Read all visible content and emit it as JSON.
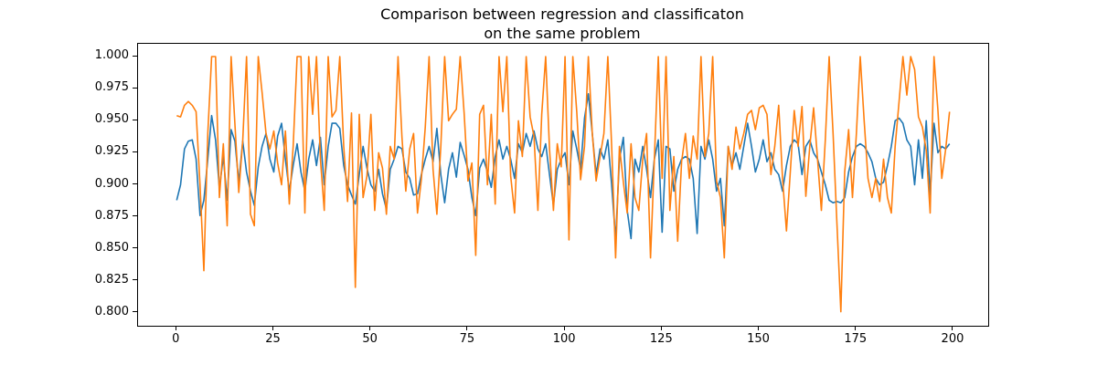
{
  "figure": {
    "title_line1": "Comparison between regression and classificaton",
    "title_line2": "on the same problem",
    "background": "#ffffff"
  },
  "chart_data": {
    "type": "line",
    "title": "Comparison between regression and classificaton\non the same problem",
    "xlabel": "",
    "ylabel": "",
    "grid": false,
    "legend": "none",
    "xlim": [
      -9.95,
      208.95
    ],
    "ylim": [
      0.79,
      1.01
    ],
    "xticks": [
      0,
      25,
      50,
      75,
      100,
      125,
      150,
      175,
      200
    ],
    "xtick_labels": [
      "0",
      "25",
      "50",
      "75",
      "100",
      "125",
      "150",
      "175",
      "200"
    ],
    "yticks": [
      0.8,
      0.825,
      0.85,
      0.875,
      0.9,
      0.925,
      0.95,
      0.975,
      1.0
    ],
    "ytick_labels": [
      "0.800",
      "0.825",
      "0.850",
      "0.875",
      "0.900",
      "0.925",
      "0.950",
      "0.975",
      "1.000"
    ],
    "x_start": 0,
    "x_step": 1,
    "series": [
      {
        "name": "series-1-blue",
        "color": "#1f77b4",
        "values": [
          0.888,
          0.9,
          0.928,
          0.934,
          0.935,
          0.92,
          0.876,
          0.888,
          0.92,
          0.954,
          0.935,
          0.897,
          0.922,
          0.888,
          0.943,
          0.934,
          0.902,
          0.934,
          0.91,
          0.895,
          0.884,
          0.914,
          0.93,
          0.94,
          0.92,
          0.91,
          0.938,
          0.948,
          0.92,
          0.895,
          0.915,
          0.932,
          0.91,
          0.895,
          0.92,
          0.935,
          0.915,
          0.937,
          0.9,
          0.93,
          0.948,
          0.948,
          0.944,
          0.915,
          0.9,
          0.892,
          0.885,
          0.908,
          0.93,
          0.913,
          0.9,
          0.895,
          0.912,
          0.893,
          0.881,
          0.912,
          0.92,
          0.93,
          0.928,
          0.91,
          0.905,
          0.892,
          0.893,
          0.908,
          0.92,
          0.93,
          0.918,
          0.944,
          0.908,
          0.886,
          0.912,
          0.925,
          0.906,
          0.933,
          0.923,
          0.912,
          0.89,
          0.876,
          0.913,
          0.92,
          0.91,
          0.898,
          0.922,
          0.935,
          0.92,
          0.93,
          0.92,
          0.905,
          0.932,
          0.925,
          0.94,
          0.93,
          0.942,
          0.928,
          0.922,
          0.932,
          0.908,
          0.884,
          0.912,
          0.92,
          0.925,
          0.9,
          0.942,
          0.928,
          0.912,
          0.952,
          0.971,
          0.94,
          0.908,
          0.928,
          0.92,
          0.935,
          0.9,
          0.857,
          0.92,
          0.937,
          0.88,
          0.858,
          0.92,
          0.91,
          0.93,
          0.912,
          0.89,
          0.92,
          0.935,
          0.863,
          0.93,
          0.928,
          0.895,
          0.912,
          0.92,
          0.922,
          0.92,
          0.905,
          0.862,
          0.93,
          0.92,
          0.935,
          0.92,
          0.895,
          0.905,
          0.868,
          0.93,
          0.915,
          0.925,
          0.912,
          0.93,
          0.948,
          0.93,
          0.91,
          0.92,
          0.935,
          0.918,
          0.925,
          0.912,
          0.908,
          0.895,
          0.915,
          0.93,
          0.935,
          0.932,
          0.908,
          0.93,
          0.935,
          0.925,
          0.92,
          0.91,
          0.9,
          0.888,
          0.886,
          0.887,
          0.886,
          0.89,
          0.91,
          0.922,
          0.93,
          0.932,
          0.93,
          0.925,
          0.918,
          0.905,
          0.9,
          0.902,
          0.915,
          0.93,
          0.95,
          0.952,
          0.948,
          0.935,
          0.93,
          0.9,
          0.935,
          0.905,
          0.95,
          0.892,
          0.948,
          0.925,
          0.93,
          0.928,
          0.932
        ]
      },
      {
        "name": "series-2-orange",
        "color": "#ff7f0e",
        "values": [
          0.954,
          0.953,
          0.962,
          0.965,
          0.962,
          0.957,
          0.9,
          0.833,
          0.94,
          1.0,
          1.0,
          0.89,
          0.932,
          0.868,
          1.0,
          0.947,
          0.894,
          0.934,
          1.0,
          0.877,
          0.868,
          1.0,
          0.972,
          0.94,
          0.928,
          0.942,
          0.917,
          0.9,
          0.942,
          0.885,
          0.93,
          1.0,
          1.0,
          0.878,
          1.0,
          0.955,
          1.0,
          0.92,
          0.88,
          1.0,
          0.953,
          0.958,
          1.0,
          0.93,
          0.887,
          0.956,
          0.82,
          0.955,
          0.89,
          0.907,
          0.955,
          0.88,
          0.925,
          0.913,
          0.877,
          0.93,
          0.92,
          1.0,
          0.937,
          0.895,
          0.928,
          0.94,
          0.878,
          0.904,
          0.945,
          1.0,
          0.912,
          0.877,
          0.93,
          1.0,
          0.95,
          0.955,
          0.959,
          1.0,
          0.956,
          0.903,
          0.917,
          0.845,
          0.955,
          0.962,
          0.9,
          0.955,
          0.885,
          1.0,
          0.957,
          1.0,
          0.907,
          0.878,
          0.95,
          0.922,
          1.0,
          0.953,
          0.938,
          0.88,
          0.955,
          1.0,
          0.928,
          0.88,
          0.932,
          0.914,
          1.0,
          0.857,
          1.0,
          0.957,
          0.904,
          0.93,
          1.0,
          0.94,
          0.903,
          0.922,
          0.94,
          1.0,
          0.93,
          0.843,
          0.93,
          0.902,
          0.878,
          0.932,
          0.89,
          0.88,
          0.92,
          0.94,
          0.843,
          0.92,
          1.0,
          0.905,
          1.0,
          0.88,
          0.922,
          0.856,
          0.918,
          0.94,
          0.905,
          0.938,
          0.92,
          1.0,
          0.922,
          0.94,
          1.0,
          0.903,
          0.89,
          0.843,
          0.93,
          0.912,
          0.945,
          0.928,
          0.94,
          0.955,
          0.958,
          0.943,
          0.96,
          0.962,
          0.955,
          0.908,
          0.93,
          0.962,
          0.905,
          0.864,
          0.91,
          0.958,
          0.93,
          0.961,
          0.891,
          0.93,
          0.96,
          0.92,
          0.88,
          0.935,
          1.0,
          0.94,
          0.87,
          0.801,
          0.91,
          0.943,
          0.89,
          0.94,
          1.0,
          0.95,
          0.905,
          0.89,
          0.905,
          0.887,
          0.92,
          0.89,
          0.878,
          0.93,
          0.965,
          1.0,
          0.97,
          1.0,
          0.99,
          0.953,
          0.945,
          0.927,
          0.878,
          1.0,
          0.958,
          0.905,
          0.928,
          0.957
        ]
      }
    ]
  }
}
